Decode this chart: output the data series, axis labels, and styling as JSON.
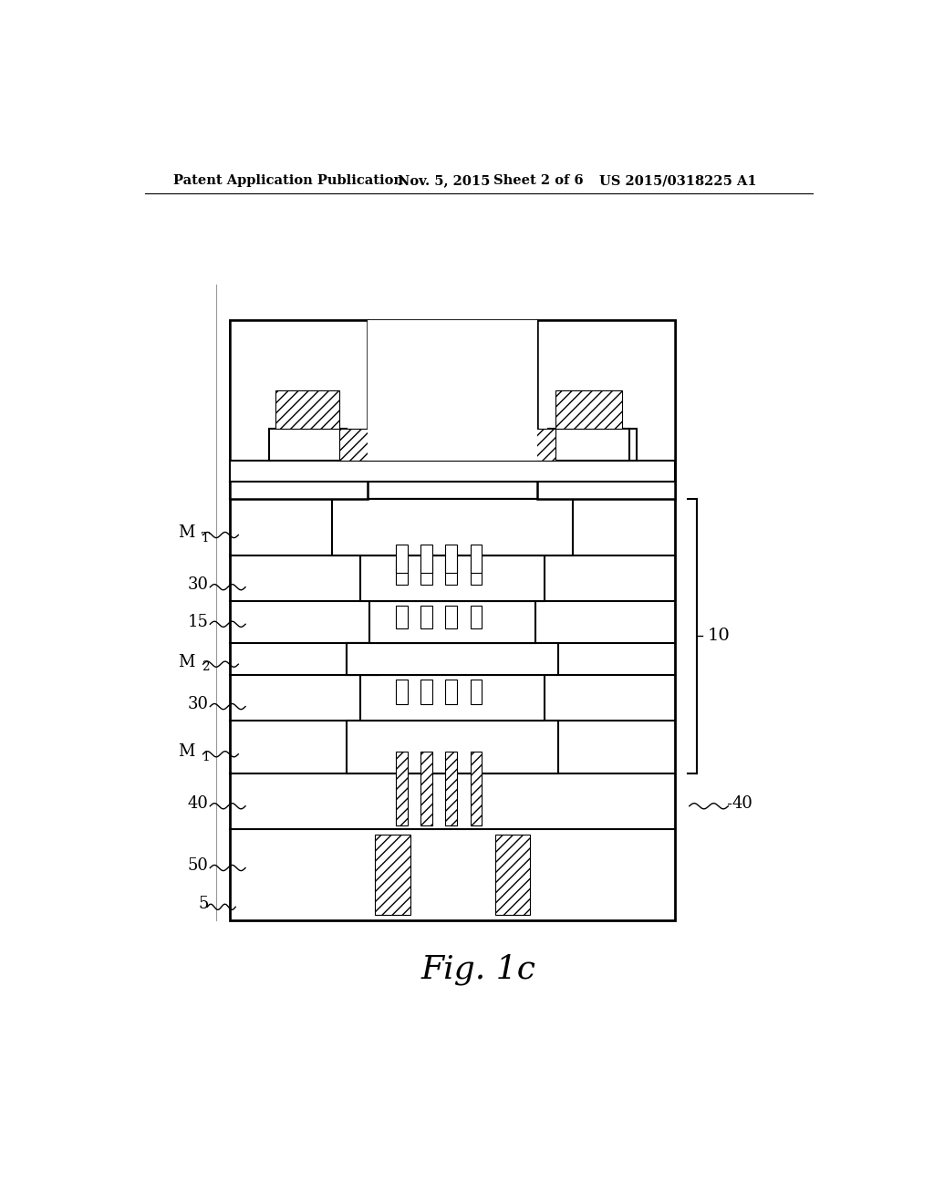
{
  "bg_color": "#ffffff",
  "header_text": "Patent Application Publication",
  "header_date": "Nov. 5, 2015",
  "header_sheet": "Sheet 2 of 6",
  "header_patent": "US 2015/0318225 A1",
  "figure_label": "Fig. 1c"
}
